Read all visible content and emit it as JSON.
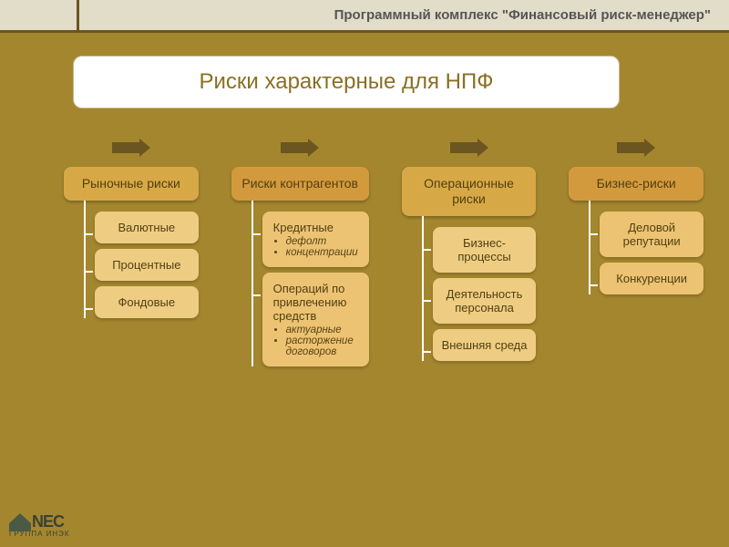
{
  "header_title": "Программный комплекс \"Финансовый риск-менеджер\"",
  "chart": {
    "type": "tree",
    "title": "Риски характерные для НПФ",
    "title_color": "#8a6f22",
    "title_bg": "#ffffff",
    "title_border": "#c8b992",
    "title_fontsize": 24,
    "background_color": "#a4862e",
    "arrow_color": "#6b5520",
    "connector_color": "#ffffff",
    "category_fontsize": 14,
    "child_fontsize": 13,
    "sub_fontsize": 11.5,
    "columns": [
      {
        "label": "Рыночные риски",
        "bg": "#d7a946",
        "child_bg": "#eecd82",
        "children": [
          {
            "label": "Валютные"
          },
          {
            "label": "Процентные"
          },
          {
            "label": "Фондовые"
          }
        ]
      },
      {
        "label": "Риски контрагентов",
        "bg": "#d39a3d",
        "child_bg": "#ecc373",
        "children": [
          {
            "label": "Кредитные",
            "sub": [
              "дефолт",
              "концентрации"
            ],
            "align": "left"
          },
          {
            "label": "Операций по привлечению средств",
            "sub": [
              "актуарные",
              "расторжение договоров"
            ],
            "align": "left"
          }
        ]
      },
      {
        "label": "Операционные риски",
        "bg": "#d7a946",
        "child_bg": "#eecd82",
        "children": [
          {
            "label": "Бизнес-процессы"
          },
          {
            "label": "Деятельность персонала"
          },
          {
            "label": "Внешняя среда"
          }
        ]
      },
      {
        "label": "Бизнес-риски",
        "bg": "#d39a3d",
        "child_bg": "#ecc373",
        "children": [
          {
            "label": "Деловой репутации"
          },
          {
            "label": "Конкуренции"
          }
        ]
      }
    ]
  },
  "logo": {
    "text": "NEC",
    "subtitle": "ГРУППА ИНЭК"
  }
}
